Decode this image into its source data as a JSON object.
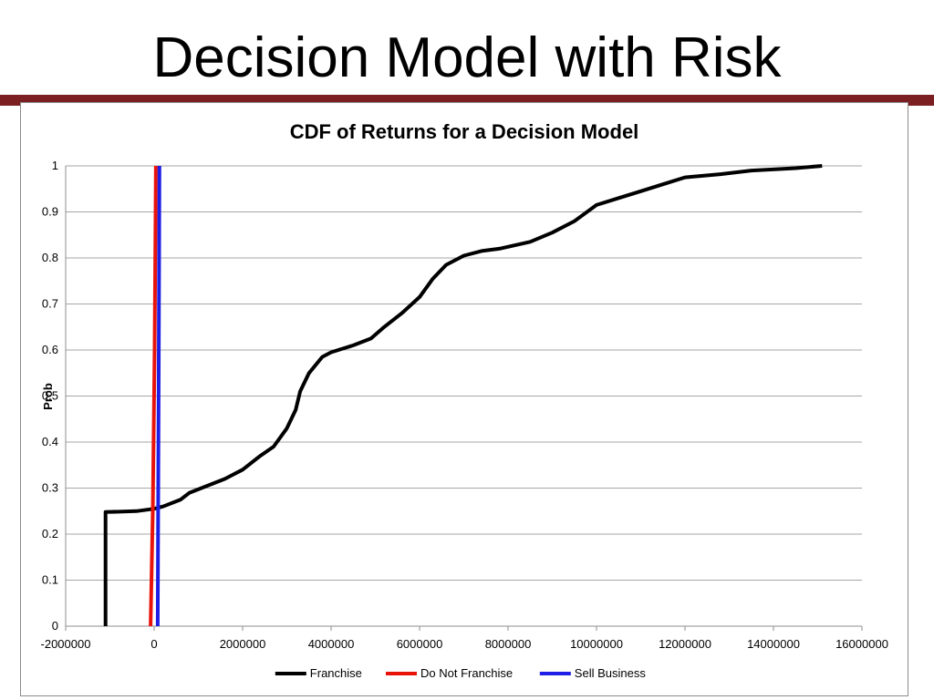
{
  "slide": {
    "title": "Decision Model with Risk",
    "accent_color": "#7b1f23"
  },
  "chart_data": {
    "type": "line",
    "title": "CDF of Returns for a Decision Model",
    "xlabel": "",
    "ylabel": "Prob",
    "xlim": [
      -2000000,
      16000000
    ],
    "ylim": [
      0,
      1
    ],
    "x_ticks": [
      "-2000000",
      "0",
      "2000000",
      "4000000",
      "6000000",
      "8000000",
      "10000000",
      "12000000",
      "14000000",
      "16000000"
    ],
    "y_ticks": [
      "0",
      "0.1",
      "0.2",
      "0.3",
      "0.4",
      "0.5",
      "0.6",
      "0.7",
      "0.8",
      "0.9",
      "1"
    ],
    "grid": "horizontal",
    "legend_position": "bottom",
    "series": [
      {
        "name": "Franchise",
        "color": "#000000",
        "points": [
          [
            -1100000,
            0
          ],
          [
            -1100000,
            0.248
          ],
          [
            -400000,
            0.25
          ],
          [
            0,
            0.255
          ],
          [
            200000,
            0.26
          ],
          [
            600000,
            0.275
          ],
          [
            800000,
            0.29
          ],
          [
            1200000,
            0.305
          ],
          [
            1600000,
            0.32
          ],
          [
            2000000,
            0.34
          ],
          [
            2400000,
            0.37
          ],
          [
            2700000,
            0.39
          ],
          [
            3000000,
            0.43
          ],
          [
            3200000,
            0.47
          ],
          [
            3300000,
            0.51
          ],
          [
            3500000,
            0.55
          ],
          [
            3800000,
            0.585
          ],
          [
            4000000,
            0.595
          ],
          [
            4500000,
            0.61
          ],
          [
            4900000,
            0.625
          ],
          [
            5200000,
            0.65
          ],
          [
            5600000,
            0.68
          ],
          [
            6000000,
            0.715
          ],
          [
            6300000,
            0.755
          ],
          [
            6600000,
            0.785
          ],
          [
            7000000,
            0.805
          ],
          [
            7400000,
            0.815
          ],
          [
            7800000,
            0.82
          ],
          [
            8500000,
            0.835
          ],
          [
            9000000,
            0.855
          ],
          [
            9500000,
            0.88
          ],
          [
            10000000,
            0.915
          ],
          [
            10500000,
            0.93
          ],
          [
            11000000,
            0.945
          ],
          [
            11500000,
            0.96
          ],
          [
            12000000,
            0.975
          ],
          [
            12800000,
            0.982
          ],
          [
            13500000,
            0.99
          ],
          [
            14500000,
            0.995
          ],
          [
            15100000,
            1.0
          ]
        ]
      },
      {
        "name": "Do Not Franchise",
        "color": "#e8140c",
        "points": [
          [
            -80000,
            0
          ],
          [
            -30000,
            0.25
          ],
          [
            10000,
            0.6
          ],
          [
            40000,
            1.0
          ]
        ]
      },
      {
        "name": "Sell Business",
        "color": "#1e1ee6",
        "points": [
          [
            80000,
            0
          ],
          [
            100000,
            0.5
          ],
          [
            120000,
            1.0
          ]
        ]
      }
    ]
  }
}
